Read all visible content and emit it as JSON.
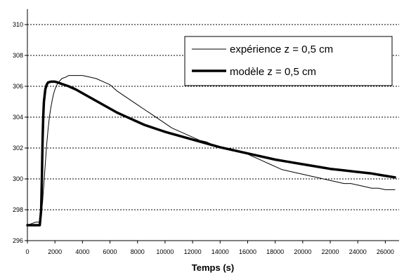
{
  "chart_data": {
    "type": "line",
    "title": "",
    "xlabel": "Temps (s)",
    "ylabel": "",
    "xlim": [
      0,
      27000
    ],
    "ylim": [
      296,
      311
    ],
    "x_ticks": [
      "0",
      "2000",
      "4000",
      "6000",
      "8000",
      "10000",
      "12000",
      "14000",
      "16000",
      "18000",
      "20000",
      "22000",
      "24000",
      "26000"
    ],
    "y_ticks": [
      "296",
      "298",
      "300",
      "302",
      "304",
      "306",
      "308",
      "310"
    ],
    "grid": "horizontal-dashed",
    "legend_position": "top-right",
    "legend": [
      "expérience z = 0,5 cm",
      "modèle z = 0,5 cm"
    ],
    "series": [
      {
        "name": "expérience z = 0,5 cm",
        "style": "thin",
        "x": [
          0,
          300,
          600,
          900,
          1000,
          1100,
          1200,
          1300,
          1400,
          1500,
          1600,
          1700,
          1800,
          1900,
          2000,
          2200,
          2500,
          2800,
          3000,
          3500,
          4000,
          4500,
          5000,
          5500,
          6000,
          6500,
          7000,
          7500,
          8000,
          8500,
          9000,
          9500,
          10000,
          10500,
          11000,
          11500,
          12000,
          12500,
          13000,
          13500,
          14000,
          14500,
          15000,
          15500,
          16000,
          16500,
          17000,
          17500,
          18000,
          18500,
          19000,
          19500,
          20000,
          20500,
          21000,
          21500,
          22000,
          22500,
          23000,
          23500,
          24000,
          24500,
          25000,
          25500,
          26000,
          26500,
          26700
        ],
        "values": [
          297.0,
          297.1,
          297.2,
          297.2,
          297.6,
          298.5,
          299.7,
          301.0,
          302.2,
          303.2,
          304.0,
          304.6,
          305.1,
          305.5,
          305.8,
          306.2,
          306.5,
          306.6,
          306.7,
          306.7,
          306.7,
          306.6,
          306.5,
          306.3,
          306.1,
          305.7,
          305.4,
          305.1,
          304.8,
          304.5,
          304.2,
          303.9,
          303.6,
          303.3,
          303.1,
          302.9,
          302.7,
          302.5,
          302.4,
          302.2,
          302.0,
          302.0,
          301.9,
          301.7,
          301.6,
          301.4,
          301.2,
          301.0,
          300.8,
          300.6,
          300.5,
          300.4,
          300.3,
          300.2,
          300.1,
          300.0,
          299.9,
          299.8,
          299.7,
          299.7,
          299.6,
          299.5,
          299.4,
          299.4,
          299.3,
          299.3,
          299.3
        ]
      },
      {
        "name": "modèle z = 0,5 cm",
        "style": "thick",
        "x": [
          0,
          900,
          1000,
          1050,
          1100,
          1150,
          1200,
          1300,
          1400,
          1500,
          1700,
          1900,
          2000,
          2200,
          2500,
          3000,
          3500,
          4000,
          4500,
          5000,
          5500,
          6000,
          6500,
          7000,
          7500,
          8000,
          8500,
          9000,
          9500,
          10000,
          11000,
          12000,
          13000,
          14000,
          15000,
          16000,
          17000,
          18000,
          19000,
          20000,
          21000,
          22000,
          23000,
          24000,
          25000,
          26000,
          26700
        ],
        "values": [
          297.0,
          297.0,
          298.0,
          300.0,
          302.5,
          304.0,
          305.0,
          305.8,
          306.1,
          306.25,
          306.3,
          306.3,
          306.3,
          306.25,
          306.15,
          306.0,
          305.8,
          305.55,
          305.3,
          305.05,
          304.8,
          304.55,
          304.3,
          304.1,
          303.9,
          303.7,
          303.5,
          303.35,
          303.2,
          303.05,
          302.8,
          302.55,
          302.3,
          302.05,
          301.85,
          301.65,
          301.45,
          301.25,
          301.1,
          300.95,
          300.8,
          300.65,
          300.55,
          300.45,
          300.35,
          300.2,
          300.1
        ]
      }
    ]
  }
}
